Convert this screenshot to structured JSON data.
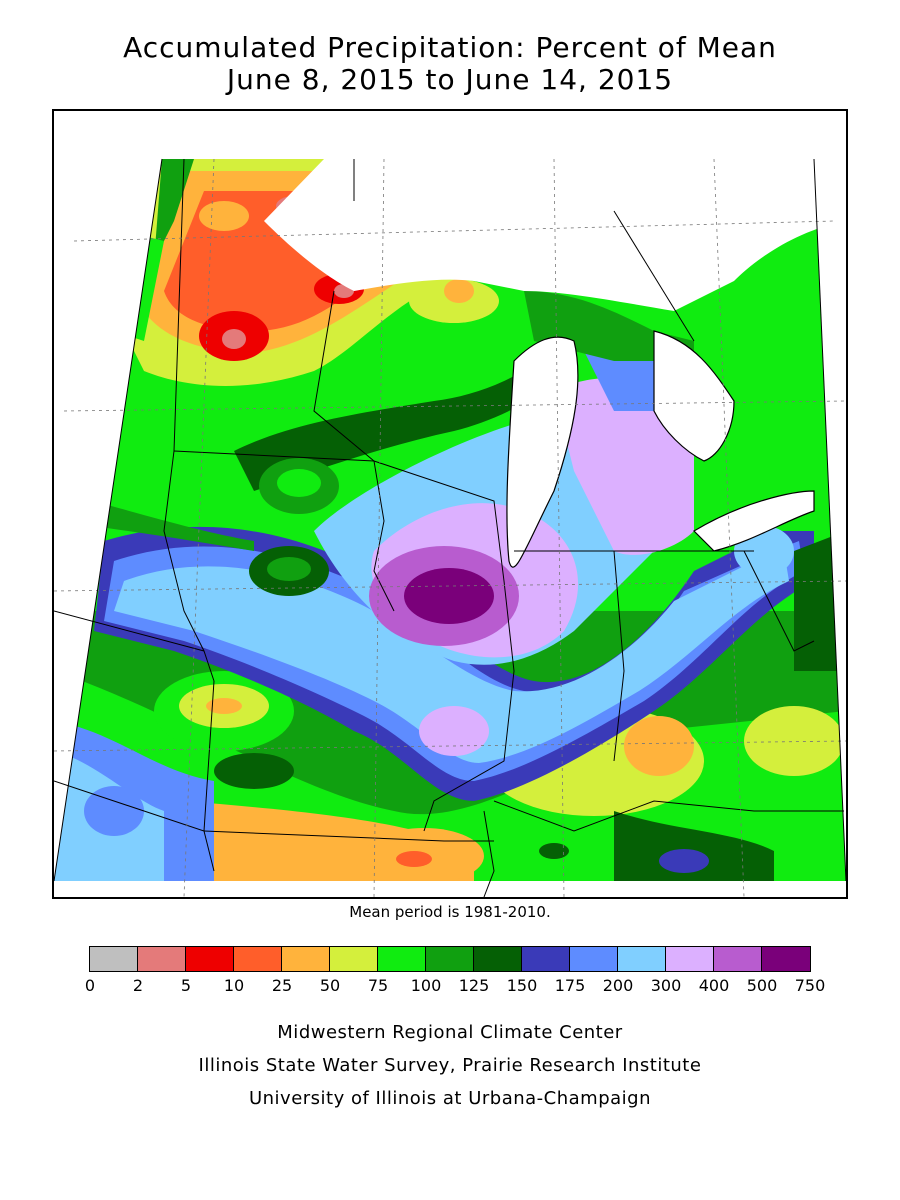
{
  "title_line1": "Accumulated Precipitation: Percent of Mean",
  "title_line2": "June 8, 2015 to June 14, 2015",
  "mean_period_note": "Mean period is 1981-2010.",
  "legend": {
    "ticks": [
      "0",
      "2",
      "5",
      "10",
      "25",
      "50",
      "75",
      "100",
      "125",
      "150",
      "175",
      "200",
      "300",
      "400",
      "500",
      "750"
    ],
    "colors": [
      "#bfbfbf",
      "#e47a7a",
      "#ee0000",
      "#ff5e2a",
      "#ffb33c",
      "#d4ef3c",
      "#10ec10",
      "#10a010",
      "#056005",
      "#3a3ab8",
      "#5e8cff",
      "#80cfff",
      "#dcb0ff",
      "#b85ccf",
      "#7a007a"
    ]
  },
  "credits": {
    "line1": "Midwestern Regional Climate Center",
    "line2": "Illinois State Water Survey, Prairie Research Institute",
    "line3": "University of Illinois at Urbana-Champaign"
  },
  "map": {
    "region": "Midwest (MN, WI, MI, IA, IL, IN, OH, MO, KY)",
    "max_anomaly_area": "northern Illinois / southern Wisconsin",
    "min_anomaly_area": "northern Minnesota"
  }
}
